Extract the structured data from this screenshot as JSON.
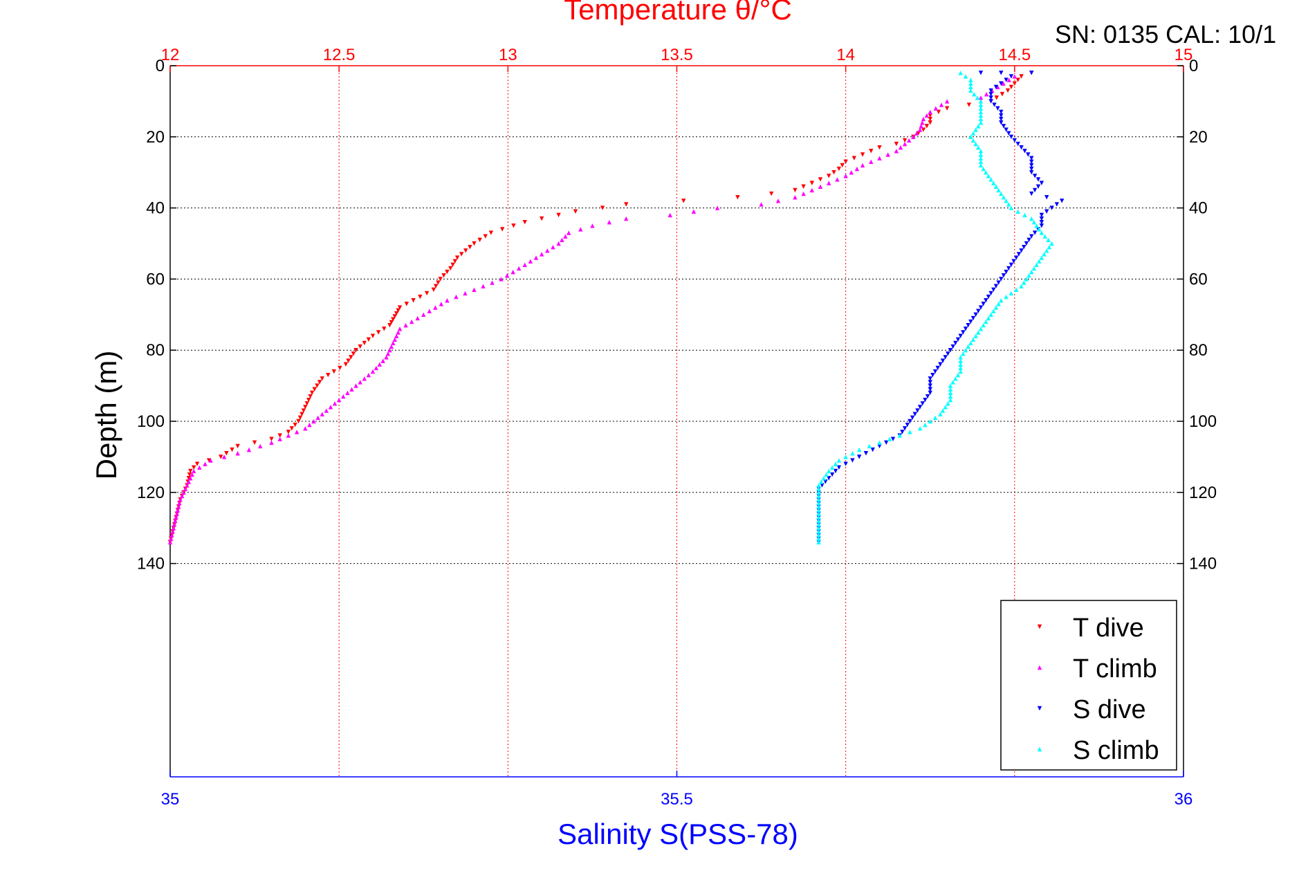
{
  "header": {
    "serial_text": "SN: 0135  CAL: 10/1"
  },
  "chart_data": {
    "type": "scatter",
    "top_axis": {
      "label": "Temperature θ/°C",
      "range": [
        12,
        15
      ],
      "ticks": [
        12,
        12.5,
        13,
        13.5,
        14,
        14.5,
        15
      ],
      "tick_labels": [
        "12",
        "12.5",
        "13",
        "13.5",
        "14",
        "14.5",
        "15"
      ],
      "color": "#ff0000",
      "grid": true
    },
    "bottom_axis": {
      "label": "Salinity S(PSS-78)",
      "range": [
        35,
        36
      ],
      "ticks": [
        35,
        35.5,
        36
      ],
      "tick_labels": [
        "35",
        "35.5",
        "36"
      ],
      "color": "#0000ff"
    },
    "y_axis": {
      "label": "Depth (m)",
      "range": [
        0,
        200
      ],
      "reversed": true,
      "ticks": [
        0,
        20,
        40,
        60,
        80,
        100,
        120,
        140
      ],
      "tick_labels": [
        "0",
        "20",
        "40",
        "60",
        "80",
        "100",
        "120",
        "140"
      ],
      "grid": true,
      "labels_both_sides": true
    },
    "legend": {
      "position": "bottom-right",
      "entries": [
        {
          "label": "T dive",
          "color": "#ff0000",
          "marker": "triangle-down"
        },
        {
          "label": "T climb",
          "color": "#ff00ff",
          "marker": "triangle-up"
        },
        {
          "label": "S dive",
          "color": "#0000ff",
          "marker": "triangle-down"
        },
        {
          "label": "S climb",
          "color": "#00ffff",
          "marker": "triangle-up"
        }
      ]
    },
    "series": [
      {
        "name": "T dive",
        "axis": "top",
        "marker": "triangle-down",
        "color": "#ff0000",
        "points": [
          [
            14.55,
            2
          ],
          [
            14.52,
            3
          ],
          [
            14.5,
            5
          ],
          [
            14.48,
            7
          ],
          [
            14.43,
            10
          ],
          [
            14.3,
            12
          ],
          [
            14.25,
            14
          ],
          [
            14.25,
            16
          ],
          [
            14.23,
            18
          ],
          [
            14.2,
            20
          ],
          [
            14.15,
            22
          ],
          [
            14.1,
            23
          ],
          [
            14.05,
            25
          ],
          [
            14.0,
            27
          ],
          [
            13.98,
            29
          ],
          [
            13.95,
            31
          ],
          [
            13.9,
            33
          ],
          [
            13.85,
            35
          ],
          [
            13.78,
            36
          ],
          [
            13.68,
            37
          ],
          [
            13.52,
            38
          ],
          [
            13.35,
            39
          ],
          [
            13.28,
            40
          ],
          [
            13.2,
            41
          ],
          [
            13.15,
            42
          ],
          [
            13.1,
            43
          ],
          [
            13.05,
            44
          ],
          [
            12.95,
            47
          ],
          [
            12.9,
            50
          ],
          [
            12.85,
            54
          ],
          [
            12.83,
            57
          ],
          [
            12.8,
            60
          ],
          [
            12.78,
            63
          ],
          [
            12.72,
            66
          ],
          [
            12.68,
            68
          ],
          [
            12.65,
            73
          ],
          [
            12.6,
            76
          ],
          [
            12.55,
            80
          ],
          [
            12.52,
            84
          ],
          [
            12.45,
            88
          ],
          [
            12.42,
            92
          ],
          [
            12.4,
            96
          ],
          [
            12.38,
            100
          ],
          [
            12.35,
            103
          ],
          [
            12.3,
            105
          ],
          [
            12.2,
            107
          ],
          [
            12.15,
            110
          ],
          [
            12.08,
            112
          ],
          [
            12.06,
            114
          ],
          [
            12.05,
            118
          ],
          [
            12.03,
            122
          ],
          [
            12.02,
            126
          ],
          [
            12.01,
            130
          ],
          [
            12.0,
            134
          ]
        ]
      },
      {
        "name": "T climb",
        "axis": "top",
        "marker": "triangle-up",
        "color": "#ff00ff",
        "points": [
          [
            14.5,
            3
          ],
          [
            14.45,
            6
          ],
          [
            14.4,
            9
          ],
          [
            14.3,
            10
          ],
          [
            14.25,
            13
          ],
          [
            14.23,
            15
          ],
          [
            14.22,
            18
          ],
          [
            14.2,
            20
          ],
          [
            14.15,
            24
          ],
          [
            14.05,
            28
          ],
          [
            14.0,
            31
          ],
          [
            13.95,
            33
          ],
          [
            13.9,
            35
          ],
          [
            13.85,
            37
          ],
          [
            13.75,
            39
          ],
          [
            13.62,
            40
          ],
          [
            13.48,
            42
          ],
          [
            13.35,
            43
          ],
          [
            13.25,
            45
          ],
          [
            13.18,
            47
          ],
          [
            13.15,
            50
          ],
          [
            13.1,
            53
          ],
          [
            13.05,
            56
          ],
          [
            12.98,
            60
          ],
          [
            12.9,
            63
          ],
          [
            12.82,
            66
          ],
          [
            12.75,
            70
          ],
          [
            12.68,
            74
          ],
          [
            12.66,
            78
          ],
          [
            12.64,
            82
          ],
          [
            12.6,
            86
          ],
          [
            12.55,
            90
          ],
          [
            12.5,
            94
          ],
          [
            12.45,
            98
          ],
          [
            12.4,
            102
          ],
          [
            12.3,
            106
          ],
          [
            12.2,
            109
          ],
          [
            12.12,
            111
          ],
          [
            12.07,
            114
          ],
          [
            12.05,
            118
          ],
          [
            12.03,
            122
          ],
          [
            12.02,
            126
          ],
          [
            12.01,
            130
          ],
          [
            12.0,
            134
          ]
        ]
      },
      {
        "name": "S dive",
        "axis": "bottom",
        "marker": "triangle-down",
        "color": "#0000ff",
        "points": [
          [
            35.82,
            2
          ],
          [
            35.8,
            2
          ],
          [
            35.85,
            2
          ],
          [
            35.83,
            3
          ],
          [
            35.82,
            5
          ],
          [
            35.81,
            7
          ],
          [
            35.81,
            10
          ],
          [
            35.82,
            13
          ],
          [
            35.82,
            16
          ],
          [
            35.83,
            20
          ],
          [
            35.84,
            23
          ],
          [
            35.85,
            26
          ],
          [
            35.85,
            30
          ],
          [
            35.86,
            33
          ],
          [
            35.85,
            36
          ],
          [
            35.88,
            38
          ],
          [
            35.87,
            40
          ],
          [
            35.86,
            42
          ],
          [
            35.86,
            45
          ],
          [
            35.85,
            48
          ],
          [
            35.84,
            52
          ],
          [
            35.83,
            56
          ],
          [
            35.82,
            60
          ],
          [
            35.81,
            64
          ],
          [
            35.8,
            68
          ],
          [
            35.79,
            72
          ],
          [
            35.78,
            76
          ],
          [
            35.77,
            80
          ],
          [
            35.76,
            84
          ],
          [
            35.75,
            88
          ],
          [
            35.75,
            92
          ],
          [
            35.74,
            96
          ],
          [
            35.73,
            100
          ],
          [
            35.72,
            104
          ],
          [
            35.7,
            107
          ],
          [
            35.68,
            110
          ],
          [
            35.66,
            113
          ],
          [
            35.65,
            116
          ],
          [
            35.64,
            119
          ],
          [
            35.64,
            122
          ],
          [
            35.64,
            126
          ],
          [
            35.64,
            130
          ],
          [
            35.64,
            134
          ]
        ]
      },
      {
        "name": "S climb",
        "axis": "bottom",
        "marker": "triangle-up",
        "color": "#00ffff",
        "points": [
          [
            35.78,
            2
          ],
          [
            35.79,
            4
          ],
          [
            35.79,
            7
          ],
          [
            35.8,
            10
          ],
          [
            35.8,
            13
          ],
          [
            35.8,
            16
          ],
          [
            35.79,
            20
          ],
          [
            35.8,
            24
          ],
          [
            35.8,
            28
          ],
          [
            35.81,
            32
          ],
          [
            35.82,
            36
          ],
          [
            35.83,
            40
          ],
          [
            35.85,
            43
          ],
          [
            35.86,
            47
          ],
          [
            35.87,
            50
          ],
          [
            35.86,
            54
          ],
          [
            35.85,
            58
          ],
          [
            35.84,
            62
          ],
          [
            35.82,
            66
          ],
          [
            35.81,
            70
          ],
          [
            35.8,
            74
          ],
          [
            35.79,
            78
          ],
          [
            35.78,
            82
          ],
          [
            35.78,
            86
          ],
          [
            35.77,
            90
          ],
          [
            35.77,
            94
          ],
          [
            35.76,
            98
          ],
          [
            35.74,
            102
          ],
          [
            35.71,
            105
          ],
          [
            35.68,
            108
          ],
          [
            35.66,
            111
          ],
          [
            35.65,
            114
          ],
          [
            35.64,
            118
          ],
          [
            35.64,
            122
          ],
          [
            35.64,
            126
          ],
          [
            35.64,
            130
          ],
          [
            35.64,
            134
          ]
        ]
      }
    ]
  }
}
